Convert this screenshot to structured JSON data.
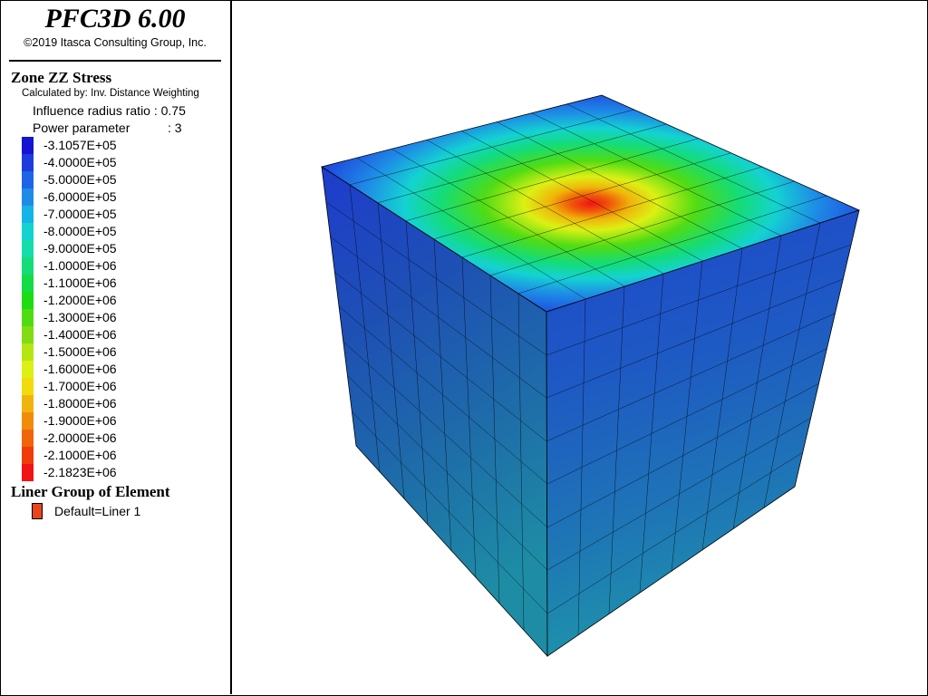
{
  "app": {
    "title": "PFC3D 6.00",
    "copyright": "©2019 Itasca Consulting Group, Inc."
  },
  "legend": {
    "heading": "Zone ZZ Stress",
    "calc_method": "Calculated by: Inv. Distance Weighting",
    "influence": "Influence radius ratio : 0.75",
    "power_name": "Power parameter",
    "power_value": ": 3",
    "items": [
      {
        "label": "-3.1057E+05",
        "color": "#1414d2"
      },
      {
        "label": "-4.0000E+05",
        "color": "#1e3cdc"
      },
      {
        "label": "-5.0000E+05",
        "color": "#1e64e6"
      },
      {
        "label": "-6.0000E+05",
        "color": "#1e8ce6"
      },
      {
        "label": "-7.0000E+05",
        "color": "#14b4e6"
      },
      {
        "label": "-8.0000E+05",
        "color": "#14d2d2"
      },
      {
        "label": "-9.0000E+05",
        "color": "#14dcaa"
      },
      {
        "label": "-1.0000E+06",
        "color": "#14dc78"
      },
      {
        "label": "-1.1000E+06",
        "color": "#14dc46"
      },
      {
        "label": "-1.2000E+06",
        "color": "#1edc14"
      },
      {
        "label": "-1.3000E+06",
        "color": "#50dc14"
      },
      {
        "label": "-1.4000E+06",
        "color": "#82dc14"
      },
      {
        "label": "-1.5000E+06",
        "color": "#b4e614"
      },
      {
        "label": "-1.6000E+06",
        "color": "#dcf014"
      },
      {
        "label": "-1.7000E+06",
        "color": "#f0dc0a"
      },
      {
        "label": "-1.8000E+06",
        "color": "#f0b40a"
      },
      {
        "label": "-1.9000E+06",
        "color": "#f08c0a"
      },
      {
        "label": "-2.0000E+06",
        "color": "#f0640a"
      },
      {
        "label": "-2.1000E+06",
        "color": "#f03c0a"
      },
      {
        "label": "-2.1823E+06",
        "color": "#f01414"
      }
    ],
    "liner_heading": "Liner Group of Element",
    "liner_label": "Default=Liner 1",
    "liner_color": "#e8461a"
  }
}
